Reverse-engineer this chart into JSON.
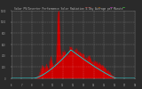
{
  "title": "Solar PV/Inverter Performance Solar Radiation & Day Average per Minute",
  "bg_color": "#2a2a2a",
  "plot_bg_color": "#333333",
  "fill_color": "#cc0000",
  "line_color": "#dd0000",
  "avg_line_color": "#00dddd",
  "grid_color": "#ffffff",
  "text_color": "#aaaaaa",
  "legend_items": [
    {
      "label": "Currnt",
      "color": "#ff4444"
    },
    {
      "label": "Avg",
      "color": "#ff8800"
    },
    {
      "label": "Min",
      "color": "#ff44ff"
    },
    {
      "label": "Max",
      "color": "#44ff44"
    }
  ],
  "ylim_max": 1200,
  "ytick_values": [
    0,
    200,
    400,
    600,
    800,
    1000,
    1200
  ],
  "num_points": 400
}
